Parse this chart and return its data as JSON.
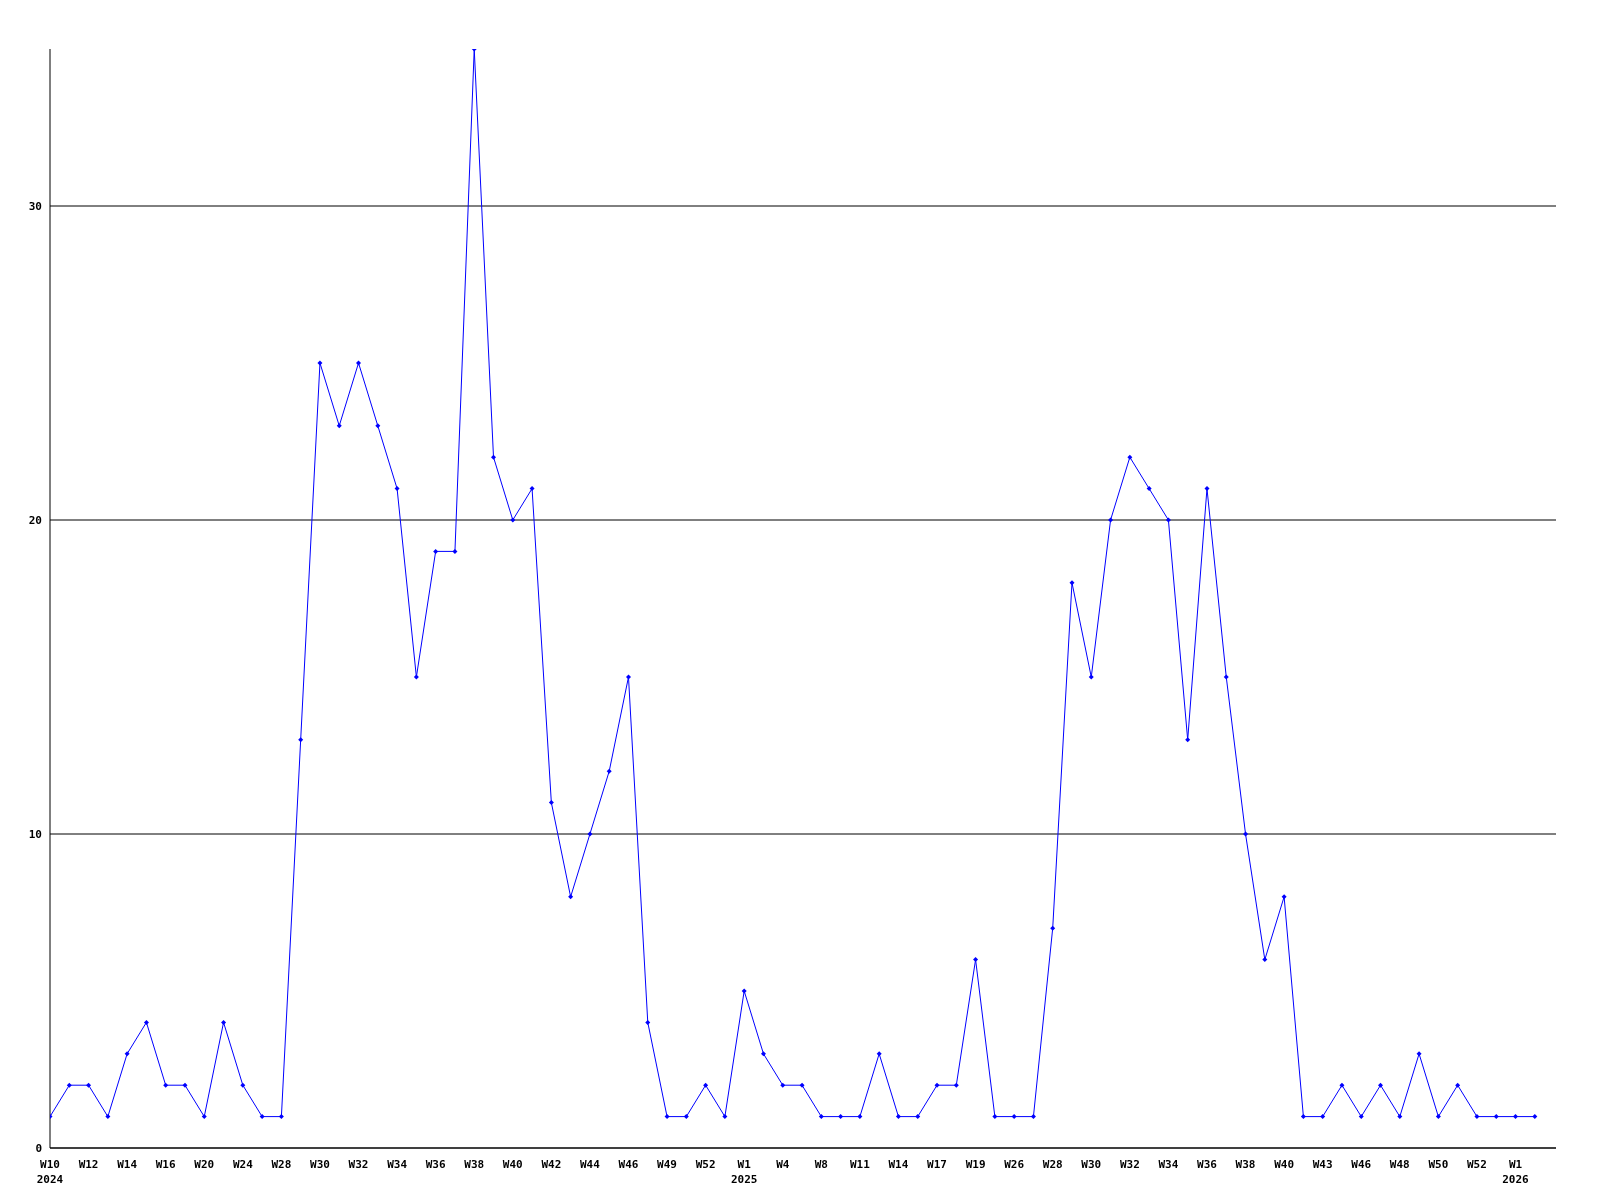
{
  "chart_data": {
    "type": "line",
    "categories": [
      "W10\n2024",
      null,
      "W12",
      null,
      "W14",
      null,
      "W16",
      null,
      "W20",
      null,
      "W24",
      null,
      "W28",
      null,
      "W30",
      null,
      "W32",
      null,
      "W34",
      null,
      "W36",
      null,
      "W38",
      null,
      "W40",
      null,
      "W42",
      null,
      "W44",
      null,
      "W46",
      null,
      "W49",
      null,
      "W52",
      null,
      "W1\n2025",
      null,
      "W4",
      null,
      "W8",
      null,
      "W11",
      null,
      "W14",
      null,
      "W17",
      null,
      "W19",
      null,
      "W26",
      null,
      "W28",
      null,
      "W30",
      null,
      "W32",
      null,
      "W34",
      null,
      "W36",
      null,
      "W38",
      null,
      "W40",
      null,
      "W43",
      null,
      "W46",
      null,
      "W48",
      null,
      "W50",
      null,
      "W52",
      null,
      "W1\n2026",
      null
    ],
    "series": [
      {
        "color": "#0000ff",
        "values": [
          1,
          2,
          2,
          1,
          3,
          4,
          2,
          2,
          1,
          4,
          2,
          1,
          1,
          13,
          25,
          23,
          25,
          23,
          21,
          15,
          19,
          19,
          35,
          22,
          20,
          21,
          11,
          8,
          10,
          12,
          15,
          4,
          1,
          1,
          2,
          1,
          5,
          3,
          2,
          2,
          1,
          1,
          1,
          3,
          1,
          1,
          2,
          2,
          6,
          1,
          1,
          1,
          7,
          18,
          15,
          20,
          22,
          21,
          20,
          13,
          21,
          15,
          10,
          6,
          8,
          1,
          1,
          2,
          1,
          2,
          1,
          3,
          1,
          2,
          1,
          1,
          1,
          1
        ]
      }
    ],
    "ylim": [
      0,
      35
    ],
    "yticks": [
      0,
      10,
      20,
      30
    ],
    "grid": "y",
    "marker": "diamond",
    "line_style": "solid"
  }
}
